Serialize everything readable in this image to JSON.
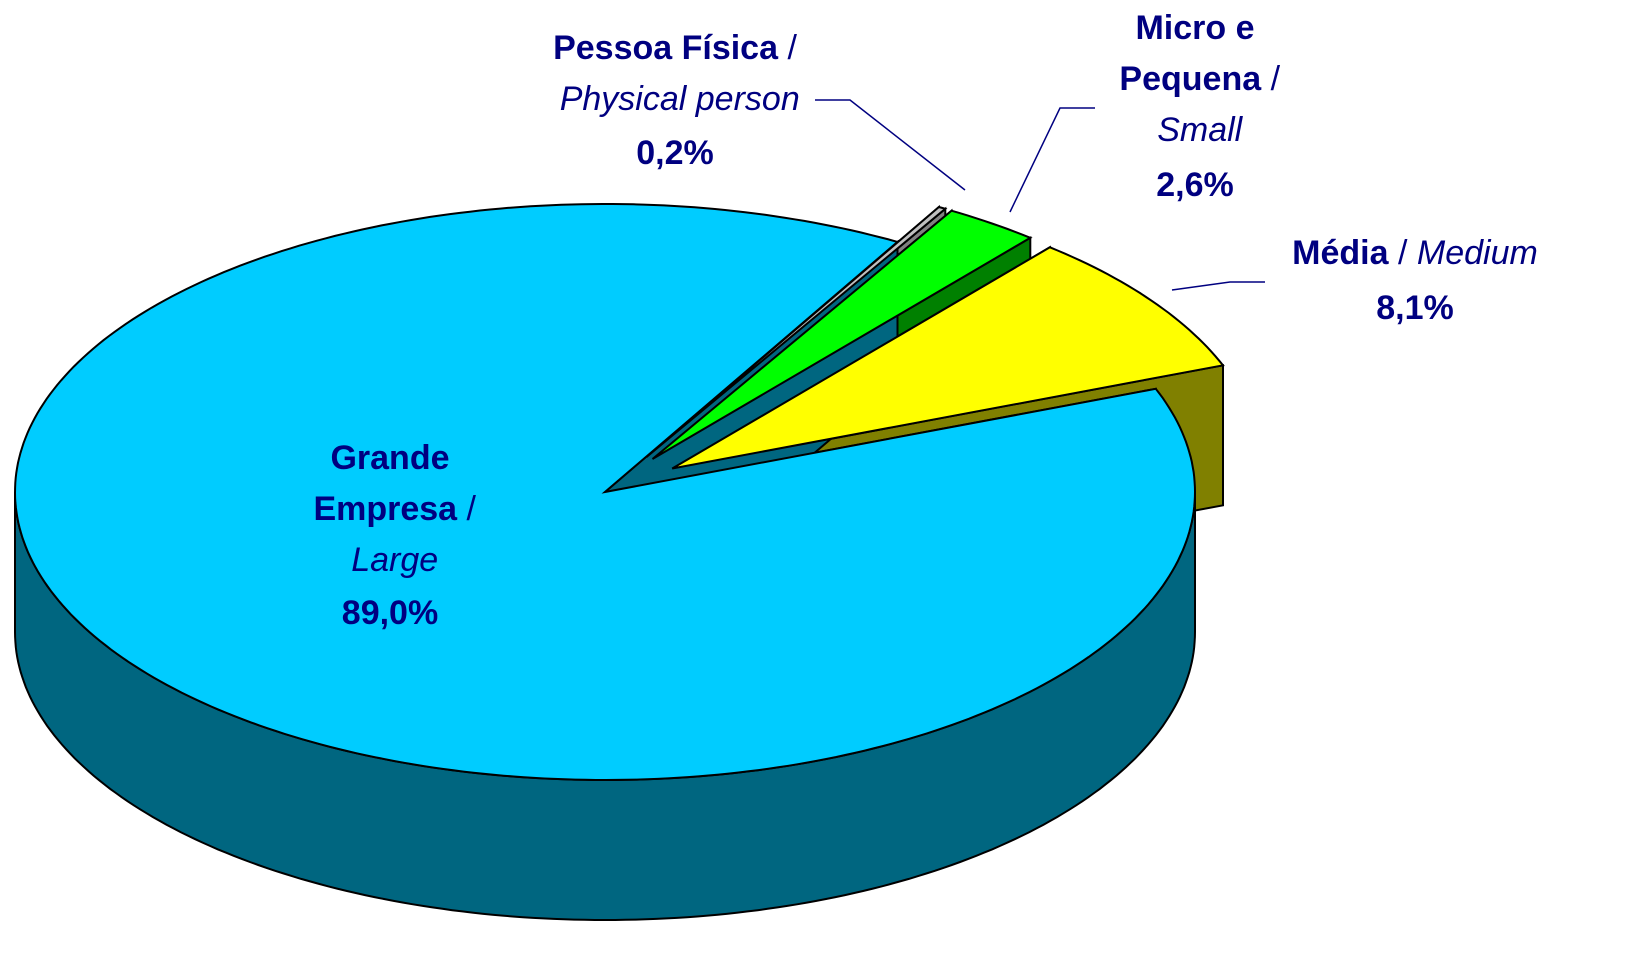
{
  "chart_data": {
    "type": "pie3d",
    "categories": [
      "Grande Empresa / Large",
      "Pessoa Física / Physical person",
      "Micro e Pequena / Small",
      "Média / Medium"
    ],
    "values": [
      89.0,
      0.2,
      2.6,
      8.1
    ],
    "value_labels": [
      "89,0%",
      "0,2%",
      "2,6%",
      "8,1%"
    ],
    "colors": [
      "#00CCFF",
      "#C0C0C0",
      "#00FF00",
      "#FFFF00"
    ],
    "side_colors": [
      "#006680",
      "#808080",
      "#008000",
      "#808000"
    ]
  }
}
